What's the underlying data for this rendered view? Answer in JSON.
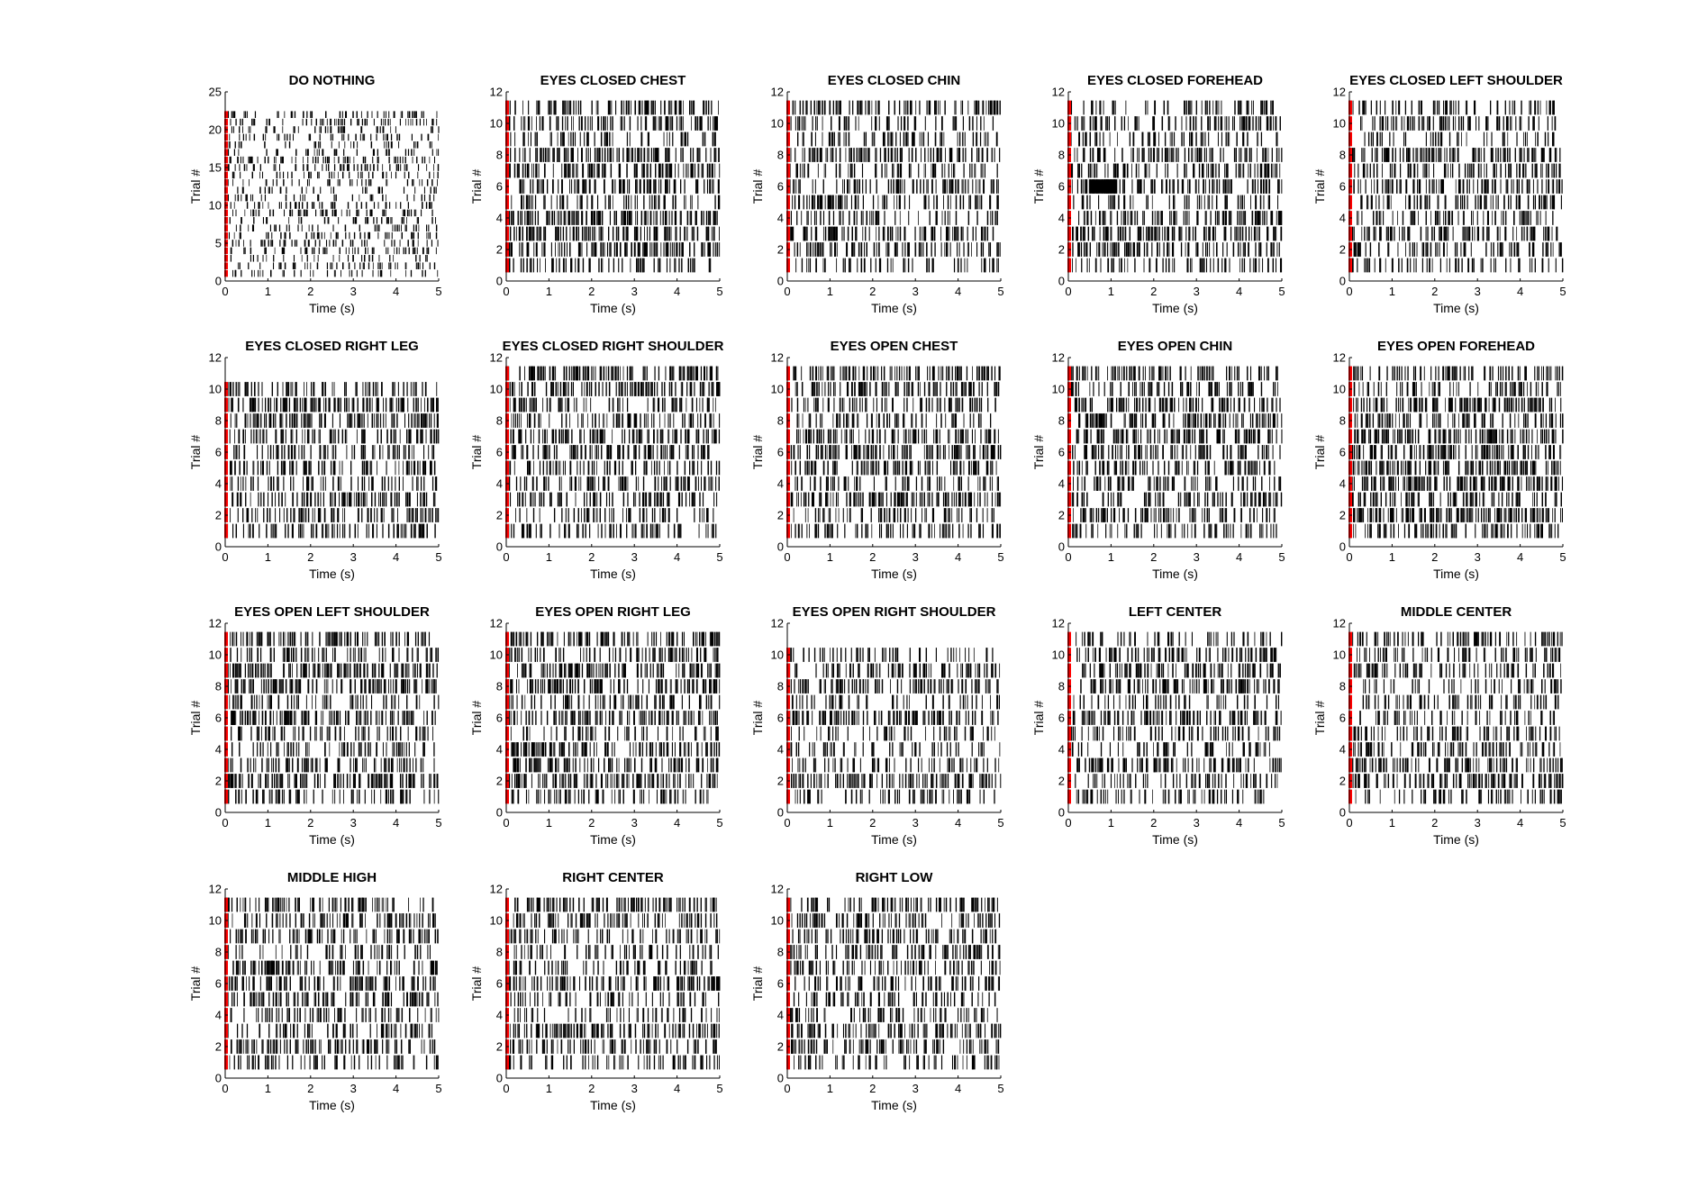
{
  "colors": {
    "spike": "#000000",
    "marker": "#ff0000",
    "axis": "#000000",
    "background": "#ffffff"
  },
  "chart_data": [
    {
      "type": "raster",
      "title": "DO NOTHING",
      "xlabel": "Time (s)",
      "ylabel": "Trial #",
      "xlim": [
        0,
        5
      ],
      "ylim": [
        0,
        25
      ],
      "xticks": [
        0,
        1,
        2,
        3,
        4,
        5
      ],
      "yticks": [
        0,
        5,
        10,
        15,
        20,
        25
      ],
      "trials": 22,
      "marker_time": 0,
      "rate": 9,
      "seed": 11
    },
    {
      "type": "raster",
      "title": "EYES CLOSED CHEST",
      "xlabel": "Time (s)",
      "ylabel": "Trial #",
      "xlim": [
        0,
        5
      ],
      "ylim": [
        0,
        12
      ],
      "xticks": [
        0,
        1,
        2,
        3,
        4,
        5
      ],
      "yticks": [
        0,
        2,
        4,
        6,
        8,
        10,
        12
      ],
      "trials": 11,
      "marker_time": 0,
      "rate": 19,
      "seed": 21
    },
    {
      "type": "raster",
      "title": "EYES CLOSED CHIN",
      "xlabel": "Time (s)",
      "ylabel": "Trial #",
      "xlim": [
        0,
        5
      ],
      "ylim": [
        0,
        12
      ],
      "xticks": [
        0,
        1,
        2,
        3,
        4,
        5
      ],
      "yticks": [
        0,
        2,
        4,
        6,
        8,
        10,
        12
      ],
      "trials": 11,
      "marker_time": 0,
      "rate": 15,
      "seed": 31
    },
    {
      "type": "raster",
      "title": "EYES CLOSED FOREHEAD",
      "xlabel": "Time (s)",
      "ylabel": "Trial #",
      "xlim": [
        0,
        5
      ],
      "ylim": [
        0,
        12
      ],
      "xticks": [
        0,
        1,
        2,
        3,
        4,
        5
      ],
      "yticks": [
        0,
        2,
        4,
        6,
        8,
        10,
        12
      ],
      "trials": 11,
      "marker_time": 0,
      "rate": 18,
      "seed": 41,
      "burst": {
        "trial": 6,
        "start": 0.5,
        "end": 1.1
      }
    },
    {
      "type": "raster",
      "title": "EYES CLOSED LEFT SHOULDER",
      "xlabel": "Time (s)",
      "ylabel": "Trial #",
      "xlim": [
        0,
        5
      ],
      "ylim": [
        0,
        12
      ],
      "xticks": [
        0,
        1,
        2,
        3,
        4,
        5
      ],
      "yticks": [
        0,
        2,
        4,
        6,
        8,
        10,
        12
      ],
      "trials": 11,
      "marker_time": 0,
      "rate": 15,
      "seed": 51
    },
    {
      "type": "raster",
      "title": "EYES CLOSED RIGHT LEG",
      "xlabel": "Time (s)",
      "ylabel": "Trial #",
      "xlim": [
        0,
        5
      ],
      "ylim": [
        0,
        12
      ],
      "xticks": [
        0,
        1,
        2,
        3,
        4,
        5
      ],
      "yticks": [
        0,
        2,
        4,
        6,
        8,
        10,
        12
      ],
      "trials": 10,
      "marker_time": 0,
      "rate": 20,
      "seed": 61
    },
    {
      "type": "raster",
      "title": "EYES CLOSED RIGHT SHOULDER",
      "xlabel": "Time (s)",
      "ylabel": "Trial #",
      "xlim": [
        0,
        5
      ],
      "ylim": [
        0,
        12
      ],
      "xticks": [
        0,
        1,
        2,
        3,
        4,
        5
      ],
      "yticks": [
        0,
        2,
        4,
        6,
        8,
        10,
        12
      ],
      "trials": 11,
      "marker_time": 0,
      "rate": 18,
      "seed": 71
    },
    {
      "type": "raster",
      "title": "EYES OPEN CHEST",
      "xlabel": "Time (s)",
      "ylabel": "Trial #",
      "xlim": [
        0,
        5
      ],
      "ylim": [
        0,
        12
      ],
      "xticks": [
        0,
        1,
        2,
        3,
        4,
        5
      ],
      "yticks": [
        0,
        2,
        4,
        6,
        8,
        10,
        12
      ],
      "trials": 11,
      "marker_time": 0,
      "rate": 18,
      "seed": 81
    },
    {
      "type": "raster",
      "title": "EYES OPEN CHIN",
      "xlabel": "Time (s)",
      "ylabel": "Trial #",
      "xlim": [
        0,
        5
      ],
      "ylim": [
        0,
        12
      ],
      "xticks": [
        0,
        1,
        2,
        3,
        4,
        5
      ],
      "yticks": [
        0,
        2,
        4,
        6,
        8,
        10,
        12
      ],
      "trials": 11,
      "marker_time": 0,
      "rate": 17,
      "seed": 91
    },
    {
      "type": "raster",
      "title": "EYES OPEN FOREHEAD",
      "xlabel": "Time (s)",
      "ylabel": "Trial #",
      "xlim": [
        0,
        5
      ],
      "ylim": [
        0,
        12
      ],
      "xticks": [
        0,
        1,
        2,
        3,
        4,
        5
      ],
      "yticks": [
        0,
        2,
        4,
        6,
        8,
        10,
        12
      ],
      "trials": 11,
      "marker_time": 0,
      "rate": 21,
      "seed": 101
    },
    {
      "type": "raster",
      "title": "EYES OPEN LEFT SHOULDER",
      "xlabel": "Time (s)",
      "ylabel": "Trial #",
      "xlim": [
        0,
        5
      ],
      "ylim": [
        0,
        12
      ],
      "xticks": [
        0,
        1,
        2,
        3,
        4,
        5
      ],
      "yticks": [
        0,
        2,
        4,
        6,
        8,
        10,
        12
      ],
      "trials": 11,
      "marker_time": 0,
      "rate": 18,
      "seed": 111
    },
    {
      "type": "raster",
      "title": "EYES OPEN RIGHT LEG",
      "xlabel": "Time (s)",
      "ylabel": "Trial #",
      "xlim": [
        0,
        5
      ],
      "ylim": [
        0,
        12
      ],
      "xticks": [
        0,
        1,
        2,
        3,
        4,
        5
      ],
      "yticks": [
        0,
        2,
        4,
        6,
        8,
        10,
        12
      ],
      "trials": 11,
      "marker_time": 0,
      "rate": 18,
      "seed": 121
    },
    {
      "type": "raster",
      "title": "EYES OPEN RIGHT SHOULDER",
      "xlabel": "Time (s)",
      "ylabel": "Trial #",
      "xlim": [
        0,
        5
      ],
      "ylim": [
        0,
        12
      ],
      "xticks": [
        0,
        1,
        2,
        3,
        4,
        5
      ],
      "yticks": [
        0,
        2,
        4,
        6,
        8,
        10,
        12
      ],
      "trials": 10,
      "marker_time": 0,
      "rate": 16,
      "seed": 131
    },
    {
      "type": "raster",
      "title": "LEFT CENTER",
      "xlabel": "Time (s)",
      "ylabel": "Trial #",
      "xlim": [
        0,
        5
      ],
      "ylim": [
        0,
        12
      ],
      "xticks": [
        0,
        1,
        2,
        3,
        4,
        5
      ],
      "yticks": [
        0,
        2,
        4,
        6,
        8,
        10,
        12
      ],
      "trials": 11,
      "marker_time": 0,
      "rate": 16,
      "seed": 141
    },
    {
      "type": "raster",
      "title": "MIDDLE CENTER",
      "xlabel": "Time (s)",
      "ylabel": "Trial #",
      "xlim": [
        0,
        5
      ],
      "ylim": [
        0,
        12
      ],
      "xticks": [
        0,
        1,
        2,
        3,
        4,
        5
      ],
      "yticks": [
        0,
        2,
        4,
        6,
        8,
        10,
        12
      ],
      "trials": 11,
      "marker_time": 0,
      "rate": 16,
      "seed": 151
    },
    {
      "type": "raster",
      "title": "MIDDLE HIGH",
      "xlabel": "Time (s)",
      "ylabel": "Trial #",
      "xlim": [
        0,
        5
      ],
      "ylim": [
        0,
        12
      ],
      "xticks": [
        0,
        1,
        2,
        3,
        4,
        5
      ],
      "yticks": [
        0,
        2,
        4,
        6,
        8,
        10,
        12
      ],
      "trials": 11,
      "marker_time": 0,
      "rate": 15,
      "seed": 161
    },
    {
      "type": "raster",
      "title": "RIGHT CENTER",
      "xlabel": "Time (s)",
      "ylabel": "Trial #",
      "xlim": [
        0,
        5
      ],
      "ylim": [
        0,
        12
      ],
      "xticks": [
        0,
        1,
        2,
        3,
        4,
        5
      ],
      "yticks": [
        0,
        2,
        4,
        6,
        8,
        10,
        12
      ],
      "trials": 11,
      "marker_time": 0,
      "rate": 16,
      "seed": 171
    },
    {
      "type": "raster",
      "title": "RIGHT LOW",
      "xlabel": "Time (s)",
      "ylabel": "Trial #",
      "xlim": [
        0,
        5
      ],
      "ylim": [
        0,
        12
      ],
      "xticks": [
        0,
        1,
        2,
        3,
        4,
        5
      ],
      "yticks": [
        0,
        2,
        4,
        6,
        8,
        10,
        12
      ],
      "trials": 11,
      "marker_time": 0,
      "rate": 15,
      "seed": 181
    }
  ]
}
